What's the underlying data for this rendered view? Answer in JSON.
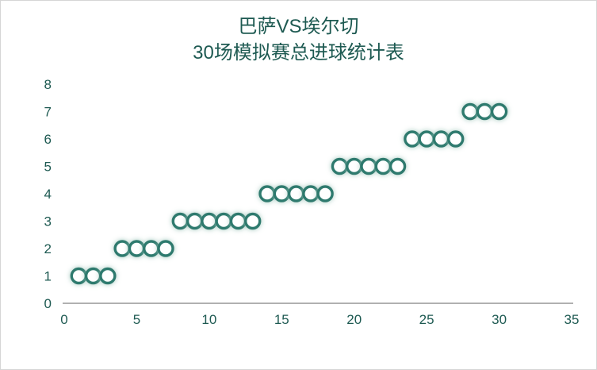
{
  "chart_data": {
    "type": "scatter",
    "title": "巴萨VS埃尔切",
    "subtitle": "30场模拟赛总进球统计表",
    "xlabel": "",
    "ylabel": "",
    "xlim": [
      0,
      35
    ],
    "ylim": [
      0,
      8
    ],
    "x_ticks": [
      0,
      5,
      10,
      15,
      20,
      25,
      30,
      35
    ],
    "y_ticks": [
      0,
      1,
      2,
      3,
      4,
      5,
      6,
      7,
      8
    ],
    "grid": false,
    "legend": "none",
    "marker": "open-circle-with-glow",
    "points": [
      [
        1,
        1
      ],
      [
        2,
        1
      ],
      [
        3,
        1
      ],
      [
        4,
        2
      ],
      [
        5,
        2
      ],
      [
        6,
        2
      ],
      [
        7,
        2
      ],
      [
        8,
        3
      ],
      [
        9,
        3
      ],
      [
        10,
        3
      ],
      [
        11,
        3
      ],
      [
        12,
        3
      ],
      [
        13,
        3
      ],
      [
        14,
        4
      ],
      [
        15,
        4
      ],
      [
        16,
        4
      ],
      [
        17,
        4
      ],
      [
        18,
        4
      ],
      [
        19,
        5
      ],
      [
        20,
        5
      ],
      [
        21,
        5
      ],
      [
        22,
        5
      ],
      [
        23,
        5
      ],
      [
        24,
        6
      ],
      [
        25,
        6
      ],
      [
        26,
        6
      ],
      [
        27,
        6
      ],
      [
        28,
        7
      ],
      [
        29,
        7
      ],
      [
        30,
        7
      ]
    ],
    "colors": {
      "title": "#1E5A52",
      "tick_label": "#1E5A52",
      "marker": "#2F7A6E",
      "marker_fill": "#FFFFFF",
      "glow": "#9CC5B9",
      "axis_line": "#808080"
    }
  }
}
